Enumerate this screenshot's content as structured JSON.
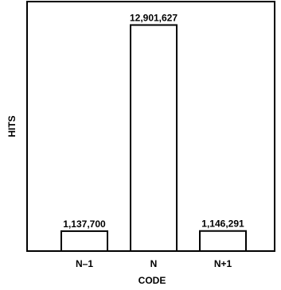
{
  "chart_data": {
    "type": "bar",
    "categories": [
      "N–1",
      "N",
      "N+1"
    ],
    "values": [
      1137700,
      12901627,
      1146291
    ],
    "data_labels": [
      "1,137,700",
      "12,901,627",
      "1,146,291"
    ],
    "title": "",
    "xlabel": "CODE",
    "ylabel": "HITS",
    "ylim": [
      0,
      13700000
    ],
    "grid": false,
    "legend": "none",
    "colors": {
      "bar_fill": "#ffffff",
      "bar_stroke": "#000000",
      "frame": "#000000",
      "text": "#000000"
    }
  }
}
